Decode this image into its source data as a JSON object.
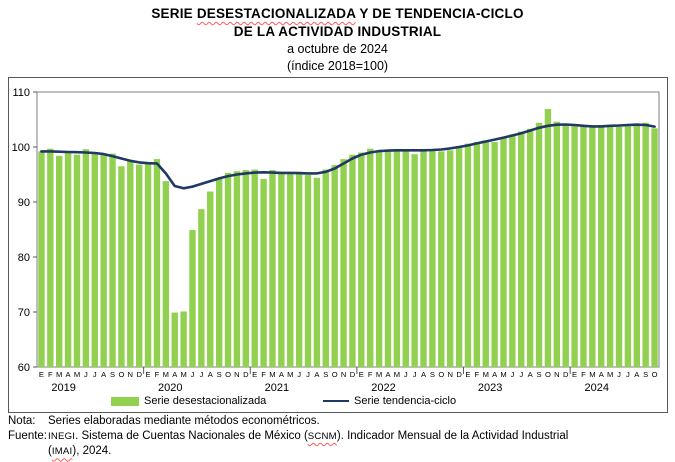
{
  "title": {
    "part1": "SERIE ",
    "wavy_word": "DESESTACIONALIZADA",
    "part2": " Y DE TENDENCIA-CICLO",
    "line2": "DE LA ACTIVIDAD INDUSTRIAL",
    "subtitle": "a octubre de 2024",
    "index_note": "(índice 2018=100)"
  },
  "legend": {
    "bar_label": "Serie desestacionalizada",
    "line_label": "Serie tendencia-ciclo"
  },
  "footer": {
    "nota_label": "Nota:",
    "nota_text": "Series elaboradas mediante métodos econométricos.",
    "fuente_label": "Fuente:",
    "fuente_p1": "INEGI",
    "fuente_p2": ". Sistema de Cuentas Nacionales de México (",
    "fuente_p3": "SCNM",
    "fuente_p4": "). Indicador Mensual de la Actividad Industrial",
    "fuente_l2a": "(",
    "fuente_l2b": "IMAI",
    "fuente_l2c": "), 2024."
  },
  "chart_data": {
    "type": "bar+line",
    "title": "Serie desestacionalizada y de tendencia-ciclo de la actividad industrial, a octubre de 2024 (índice 2018=100)",
    "ylim": [
      60,
      110
    ],
    "yticks": [
      110,
      100,
      90,
      80,
      70,
      60
    ],
    "month_letters": [
      "E",
      "F",
      "M",
      "A",
      "M",
      "J",
      "J",
      "A",
      "S",
      "O",
      "N",
      "D"
    ],
    "years": [
      {
        "label": "2019",
        "n_months": 12
      },
      {
        "label": "2020",
        "n_months": 12
      },
      {
        "label": "2021",
        "n_months": 12
      },
      {
        "label": "2022",
        "n_months": 12
      },
      {
        "label": "2023",
        "n_months": 12
      },
      {
        "label": "2024",
        "n_months": 10
      }
    ],
    "colors": {
      "bar": "#92D050",
      "line": "#1F3864",
      "axis": "#595959",
      "plot_border": "#7f7f7f"
    },
    "series": [
      {
        "name": "Serie desestacionalizada",
        "type": "bar",
        "values": [
          99.2,
          99.7,
          98.4,
          99.0,
          98.6,
          99.6,
          99.0,
          98.8,
          98.8,
          96.5,
          97.4,
          96.8,
          97.1,
          97.8,
          93.8,
          69.9,
          70.1,
          84.9,
          88.7,
          91.9,
          94.2,
          95.3,
          95.6,
          95.8,
          95.9,
          94.2,
          95.8,
          95.3,
          95.3,
          95.2,
          94.9,
          94.4,
          95.9,
          96.7,
          97.8,
          98.6,
          99.0,
          99.7,
          99.1,
          99.3,
          99.5,
          99.3,
          98.7,
          99.2,
          99.6,
          99.2,
          99.4,
          100.2,
          100.6,
          100.9,
          101.2,
          100.9,
          101.8,
          102.3,
          102.8,
          103.3,
          104.4,
          106.9,
          104.6,
          104.0,
          104.0,
          103.8,
          103.6,
          104.0,
          103.8,
          103.7,
          104.0,
          104.3,
          104.4,
          103.4
        ]
      },
      {
        "name": "Serie tendencia-ciclo",
        "type": "line",
        "values": [
          99.2,
          99.2,
          99.15,
          99.1,
          99.05,
          99.0,
          98.9,
          98.7,
          98.35,
          97.9,
          97.5,
          97.2,
          97.05,
          97.0,
          95.2,
          92.9,
          92.5,
          92.8,
          93.3,
          93.8,
          94.3,
          94.7,
          95.0,
          95.2,
          95.35,
          95.4,
          95.35,
          95.3,
          95.3,
          95.25,
          95.2,
          95.2,
          95.5,
          96.1,
          97.0,
          97.9,
          98.6,
          99.0,
          99.25,
          99.35,
          99.4,
          99.4,
          99.4,
          99.4,
          99.45,
          99.55,
          99.75,
          100.0,
          100.3,
          100.65,
          101.0,
          101.35,
          101.7,
          102.1,
          102.5,
          103.0,
          103.5,
          103.85,
          104.05,
          104.1,
          104.0,
          103.85,
          103.75,
          103.75,
          103.85,
          103.9,
          104.0,
          104.05,
          104.0,
          103.7
        ]
      }
    ]
  }
}
